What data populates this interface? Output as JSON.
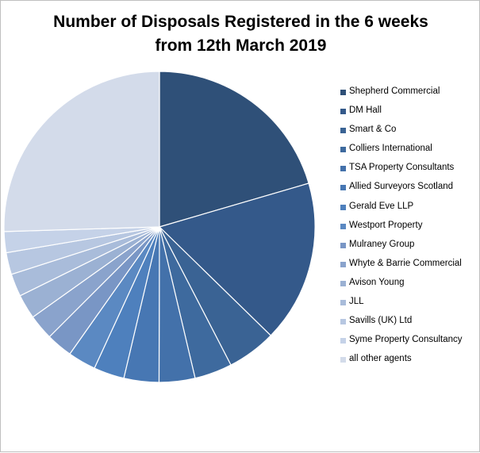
{
  "chart_data": {
    "type": "pie",
    "title": [
      "Number of Disposals Registered in the 6 weeks",
      "from 12th March 2019"
    ],
    "legend_position": "right",
    "start_angle_deg": 0,
    "direction": "clockwise",
    "slices": [
      {
        "label": "Shepherd Commercial",
        "value": 22.5,
        "color": "#2f5078"
      },
      {
        "label": "DM Hall",
        "value": 18.5,
        "color": "#34598a"
      },
      {
        "label": "Smart & Co",
        "value": 5.6,
        "color": "#3a6394"
      },
      {
        "label": "Colliers International",
        "value": 4.3,
        "color": "#3e6a9e"
      },
      {
        "label": "TSA Property Consultants",
        "value": 4.1,
        "color": "#4371aa"
      },
      {
        "label": "Allied Surveyors Scotland",
        "value": 4.0,
        "color": "#4777b3"
      },
      {
        "label": "Gerald Eve LLP",
        "value": 3.5,
        "color": "#4e80bd"
      },
      {
        "label": "Westport Property",
        "value": 3.2,
        "color": "#5b89c2"
      },
      {
        "label": "Mulraney Group",
        "value": 3.0,
        "color": "#7996c5"
      },
      {
        "label": "Whyte & Barrie Commercial",
        "value": 2.9,
        "color": "#8aa3cc"
      },
      {
        "label": "Avison Young",
        "value": 2.8,
        "color": "#9bb1d3"
      },
      {
        "label": "JLL",
        "value": 2.6,
        "color": "#a9bcda"
      },
      {
        "label": "Savills (UK) Ltd",
        "value": 2.5,
        "color": "#b7c7e1"
      },
      {
        "label": "Syme Property Consultancy",
        "value": 2.4,
        "color": "#c5d2e8"
      },
      {
        "label": "all other agents",
        "value": 28.0,
        "color": "#d3dbea"
      }
    ]
  }
}
